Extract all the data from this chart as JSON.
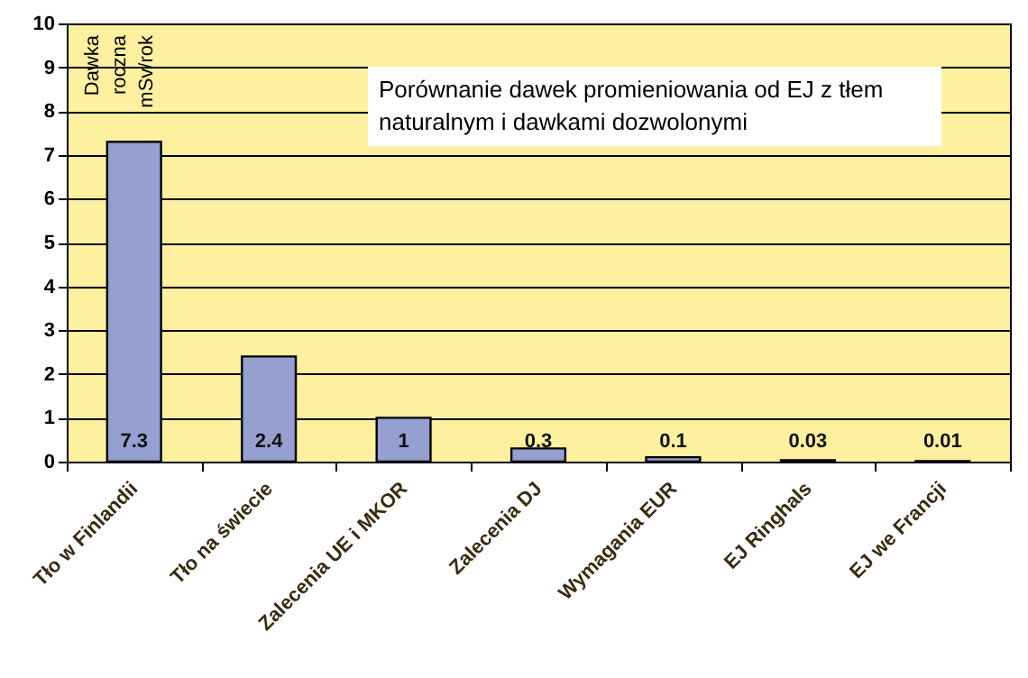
{
  "chart_data": {
    "type": "bar",
    "title": "Porównanie dawek promieniowania od EJ z tłem naturalnym i dawkami dozwolonymi",
    "ylabel": "Dawka roczna mSv/rok",
    "categories": [
      "Tło w Finlandii",
      "Tło na świecie",
      "Zalecenia UE i MKOR",
      "Zalecenia DJ",
      "Wymagania EUR",
      "EJ Ringhals",
      "EJ we Francji"
    ],
    "values": [
      7.3,
      2.4,
      1,
      0.3,
      0.1,
      0.03,
      0.01
    ],
    "color": "#959fd0",
    "ylim": [
      0,
      10
    ],
    "yticks": [
      0,
      1,
      2,
      3,
      4,
      5,
      6,
      7,
      8,
      9,
      10
    ],
    "grid": "y",
    "data_labels": true
  }
}
